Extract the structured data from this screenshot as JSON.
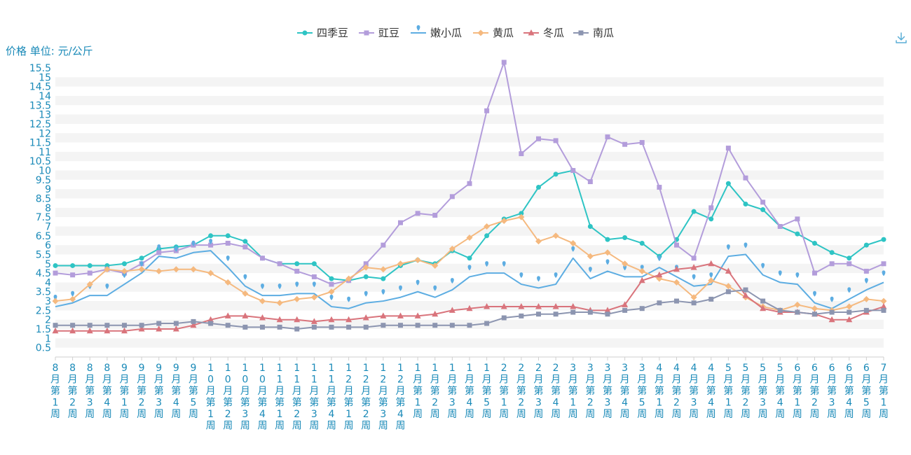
{
  "unit_label": "价格 单位: 元/公斤",
  "toolbar": {
    "download_icon": "download-icon"
  },
  "colors": {
    "axis_text": "#1a8ab8",
    "grid_band": "#f4f4f4",
    "series": [
      "#2ec4c4",
      "#b39ddb",
      "#5dade2",
      "#f5b97f",
      "#d9747c",
      "#8c95b0"
    ]
  },
  "chart_data": {
    "type": "line",
    "title": "",
    "xlabel": "",
    "ylabel": "价格 单位: 元/公斤",
    "ylim": [
      0,
      15.5
    ],
    "yticks": [
      "0.5",
      "1",
      "1.5",
      "2",
      "2.5",
      "3",
      "3.5",
      "4",
      "4.5",
      "5",
      "5.5",
      "6",
      "6.5",
      "7",
      "7.5",
      "8",
      "8.5",
      "9",
      "9.5",
      "10",
      "10.5",
      "11",
      "11.5",
      "12",
      "12.5",
      "13",
      "13.5",
      "14",
      "14.5",
      "15",
      "15.5"
    ],
    "legend_position": "top-center",
    "grid": true,
    "categories": [
      "8月第1周",
      "8月第2周",
      "8月第3周",
      "8月第4周",
      "9月第1周",
      "9月第2周",
      "9月第3周",
      "9月第4周",
      "9月第5周",
      "10月第1周",
      "10月第2周",
      "10月第3周",
      "10月第4周",
      "11月第1周",
      "11月第2周",
      "11月第3周",
      "11月第4周",
      "12月第1周",
      "12月第2周",
      "12月第3周",
      "12月第4周",
      "1月第1周",
      "1月第2周",
      "1月第3周",
      "1月第4周",
      "1月第5周",
      "2月第1周",
      "2月第2周",
      "2月第3周",
      "2月第4周",
      "3月第1周",
      "3月第2周",
      "3月第3周",
      "3月第4周",
      "3月第5周",
      "4月第1周",
      "4月第2周",
      "4月第3周",
      "4月第4周",
      "5月第1周",
      "5月第2周",
      "5月第3周",
      "5月第4周",
      "6月第1周",
      "6月第2周",
      "6月第3周",
      "6月第4周",
      "6月第5周",
      "7月第1周"
    ],
    "series": [
      {
        "name": "四季豆",
        "marker": "circle",
        "values": [
          4.9,
          4.9,
          4.9,
          4.9,
          5.0,
          5.3,
          5.8,
          5.9,
          6.0,
          6.5,
          6.5,
          6.2,
          5.3,
          5.0,
          5.0,
          5.0,
          4.2,
          4.1,
          4.3,
          4.2,
          4.9,
          5.2,
          5.0,
          5.7,
          5.3,
          6.5,
          7.4,
          7.7,
          9.1,
          9.8,
          10.0,
          7.0,
          6.3,
          6.4,
          6.1,
          5.4,
          6.3,
          7.8,
          7.4,
          9.3,
          8.2,
          7.9,
          7.0,
          6.6,
          6.1,
          5.6,
          5.3,
          6.0,
          6.3
        ]
      },
      {
        "name": "豇豆",
        "marker": "square",
        "values": [
          4.5,
          4.4,
          4.5,
          4.7,
          4.5,
          5.0,
          5.6,
          5.7,
          6.0,
          6.0,
          6.1,
          5.9,
          5.3,
          5.0,
          4.6,
          4.3,
          3.9,
          4.1,
          5.0,
          6.0,
          7.2,
          7.7,
          7.6,
          8.6,
          9.3,
          13.2,
          15.8,
          10.9,
          11.7,
          11.6,
          10.0,
          9.4,
          11.8,
          11.4,
          11.5,
          9.1,
          6.0,
          5.3,
          8.0,
          11.2,
          9.6,
          8.3,
          7.0,
          7.4,
          4.5,
          5.0,
          5.0,
          4.6,
          5.0
        ]
      },
      {
        "name": "嫩小瓜",
        "marker": "pin",
        "values": [
          2.7,
          2.9,
          3.3,
          3.3,
          3.9,
          4.5,
          5.4,
          5.3,
          5.6,
          5.7,
          4.8,
          3.8,
          3.3,
          3.3,
          3.4,
          3.4,
          2.7,
          2.6,
          2.9,
          3.0,
          3.2,
          3.5,
          3.2,
          3.6,
          4.3,
          4.5,
          4.5,
          3.9,
          3.7,
          3.9,
          5.3,
          4.2,
          4.6,
          4.3,
          4.3,
          4.8,
          4.3,
          3.8,
          3.9,
          5.4,
          5.5,
          4.4,
          4.0,
          3.9,
          2.9,
          2.6,
          3.1,
          3.6,
          4.0
        ]
      },
      {
        "name": "黄瓜",
        "marker": "diamond",
        "values": [
          3.0,
          3.1,
          3.9,
          4.7,
          4.6,
          4.7,
          4.6,
          4.7,
          4.7,
          4.5,
          4.0,
          3.4,
          3.0,
          2.9,
          3.1,
          3.2,
          3.5,
          4.2,
          4.8,
          4.7,
          5.0,
          5.2,
          4.9,
          5.8,
          6.4,
          7.0,
          7.3,
          7.5,
          6.2,
          6.5,
          6.1,
          5.4,
          5.6,
          5.0,
          4.6,
          4.2,
          4.0,
          3.2,
          4.1,
          3.8,
          3.2,
          2.7,
          2.5,
          2.8,
          2.6,
          2.5,
          2.7,
          3.1,
          3.0
        ]
      },
      {
        "name": "冬瓜",
        "marker": "triangle",
        "values": [
          1.4,
          1.4,
          1.4,
          1.4,
          1.4,
          1.5,
          1.5,
          1.5,
          1.7,
          2.0,
          2.2,
          2.2,
          2.1,
          2.0,
          2.0,
          1.9,
          2.0,
          2.0,
          2.1,
          2.2,
          2.2,
          2.2,
          2.3,
          2.5,
          2.6,
          2.7,
          2.7,
          2.7,
          2.7,
          2.7,
          2.7,
          2.5,
          2.5,
          2.8,
          4.1,
          4.4,
          4.7,
          4.8,
          5.0,
          4.6,
          3.3,
          2.6,
          2.4,
          2.4,
          2.3,
          2.0,
          2.0,
          2.4,
          2.7
        ]
      },
      {
        "name": "南瓜",
        "marker": "square",
        "values": [
          1.7,
          1.7,
          1.7,
          1.7,
          1.7,
          1.7,
          1.8,
          1.8,
          1.9,
          1.8,
          1.7,
          1.6,
          1.6,
          1.6,
          1.5,
          1.6,
          1.6,
          1.6,
          1.6,
          1.7,
          1.7,
          1.7,
          1.7,
          1.7,
          1.7,
          1.8,
          2.1,
          2.2,
          2.3,
          2.3,
          2.4,
          2.4,
          2.3,
          2.5,
          2.6,
          2.9,
          3.0,
          2.9,
          3.1,
          3.5,
          3.6,
          3.0,
          2.5,
          2.4,
          2.3,
          2.4,
          2.4,
          2.5,
          2.5
        ]
      }
    ]
  }
}
